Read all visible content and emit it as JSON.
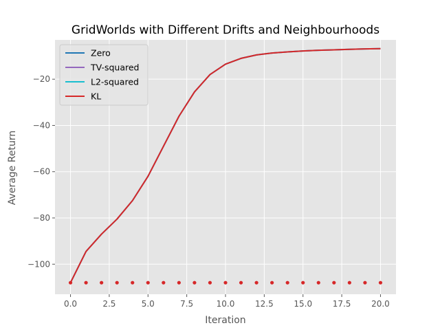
{
  "chart_data": {
    "type": "line",
    "title": "GridWorlds with Different Drifts and Neighbourhoods",
    "xlabel": "Iteration",
    "ylabel": "Average Return",
    "xlim": [
      -1,
      21
    ],
    "ylim": [
      -113,
      -3
    ],
    "xticks": [
      0,
      2.5,
      5,
      7.5,
      10,
      12.5,
      15,
      17.5,
      20
    ],
    "xtick_labels": [
      "0.0",
      "2.5",
      "5.0",
      "7.5",
      "10.0",
      "12.5",
      "15.0",
      "17.5",
      "20.0"
    ],
    "yticks": [
      -100,
      -80,
      -60,
      -40,
      -20
    ],
    "ytick_labels": [
      "−100",
      "−80",
      "−60",
      "−40",
      "−20"
    ],
    "grid": true,
    "legend_position": "top-left",
    "x": [
      0,
      1,
      2,
      3,
      4,
      5,
      6,
      7,
      8,
      9,
      10,
      11,
      12,
      13,
      14,
      15,
      16,
      17,
      18,
      19,
      20
    ],
    "series": [
      {
        "name": "Zero",
        "color": "#1f77b4",
        "style": "dots",
        "values": [
          -108,
          -108,
          -108,
          -108,
          -108,
          -108,
          -108,
          -108,
          -108,
          -108,
          -108,
          -108,
          -108,
          -108,
          -108,
          -108,
          -108,
          -108,
          -108,
          -108,
          -108
        ]
      },
      {
        "name": "TV-squared",
        "color": "#9467bd",
        "style": "line",
        "values": [
          -108,
          -94.5,
          -87,
          -80.5,
          -72.5,
          -62,
          -49,
          -36,
          -25.5,
          -18,
          -13.5,
          -11,
          -9.5,
          -8.7,
          -8.2,
          -7.8,
          -7.5,
          -7.3,
          -7.1,
          -6.9,
          -6.8
        ]
      },
      {
        "name": "L2-squared",
        "color": "#17becf",
        "style": "line",
        "values": [
          -108,
          -94.5,
          -87,
          -80.5,
          -72.5,
          -62,
          -49,
          -36,
          -25.5,
          -18,
          -13.5,
          -11,
          -9.5,
          -8.7,
          -8.2,
          -7.8,
          -7.5,
          -7.3,
          -7.1,
          -6.9,
          -6.8
        ]
      },
      {
        "name": "KL",
        "color": "#d62728",
        "style": "line",
        "values": [
          -108,
          -94.5,
          -87,
          -80.5,
          -72.5,
          -62,
          -49,
          -36,
          -25.5,
          -18,
          -13.5,
          -11,
          -9.5,
          -8.7,
          -8.2,
          -7.8,
          -7.5,
          -7.3,
          -7.1,
          -6.9,
          -6.8
        ]
      }
    ],
    "markers": {
      "color": "#d62728",
      "x": [
        0,
        1,
        2,
        3,
        4,
        5,
        6,
        7,
        8,
        9,
        10,
        11,
        12,
        13,
        14,
        15,
        16,
        17,
        18,
        19,
        20
      ],
      "values": [
        -108,
        -108,
        -108,
        -108,
        -108,
        -108,
        -108,
        -108,
        -108,
        -108,
        -108,
        -108,
        -108,
        -108,
        -108,
        -108,
        -108,
        -108,
        -108,
        -108,
        -108
      ]
    },
    "colors": {
      "plot_bg": "#e5e5e5",
      "grid": "#ffffff"
    }
  }
}
